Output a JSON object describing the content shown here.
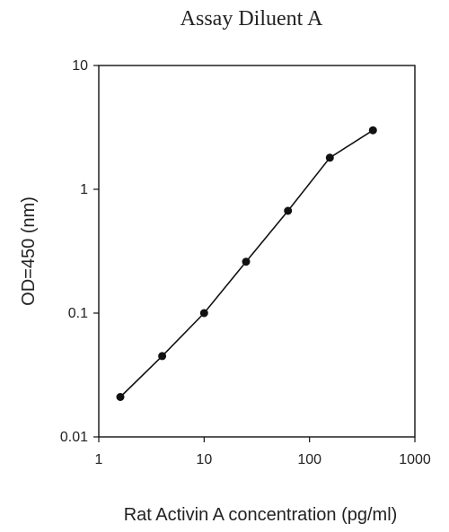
{
  "chart_data": {
    "type": "line",
    "title": "Assay Diluent A",
    "xlabel": "Rat Activin A concentration (pg/ml)",
    "ylabel": "OD=450 (nm)",
    "x_scale": "log",
    "y_scale": "log",
    "xlim": [
      1,
      1000
    ],
    "ylim": [
      0.01,
      10
    ],
    "x_ticks": [
      1,
      10,
      100,
      1000
    ],
    "x_tick_labels": [
      "1",
      "10",
      "100",
      "1000"
    ],
    "y_ticks": [
      0.01,
      0.1,
      1,
      10
    ],
    "y_tick_labels": [
      "0.01",
      "0.1",
      "1",
      "10"
    ],
    "grid": false,
    "legend": "none",
    "series": [
      {
        "x": [
          1.6,
          4.0,
          10,
          25,
          62.5,
          156,
          400
        ],
        "y": [
          0.021,
          0.045,
          0.1,
          0.26,
          0.67,
          1.8,
          3.0
        ]
      }
    ],
    "colors": {
      "line": "#111111",
      "marker": "#111111",
      "frame": "#111111"
    }
  }
}
